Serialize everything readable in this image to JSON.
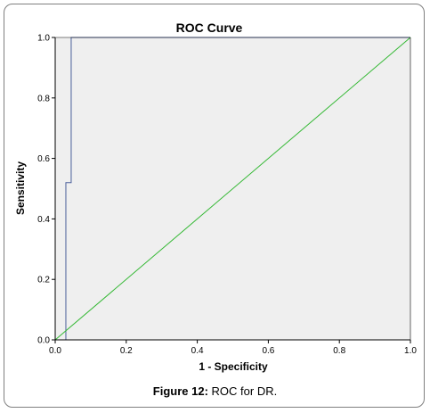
{
  "chart_data": {
    "type": "line",
    "title": "ROC Curve",
    "xlabel": "1 - Specificity",
    "ylabel": "Sensitivity",
    "xlim": [
      0.0,
      1.0
    ],
    "ylim": [
      0.0,
      1.0
    ],
    "x_ticks": [
      "0.0",
      "0.2",
      "0.4",
      "0.6",
      "0.8",
      "1.0"
    ],
    "y_ticks": [
      "0.0",
      "0.2",
      "0.4",
      "0.6",
      "0.8",
      "1.0"
    ],
    "grid": false,
    "series": [
      {
        "color": "#4a5f9a",
        "x": [
          0.0,
          0.03,
          0.03,
          0.045,
          0.045,
          1.0
        ],
        "y": [
          0.0,
          0.0,
          0.52,
          0.52,
          1.0,
          1.0
        ]
      },
      {
        "color": "#33b833",
        "x": [
          0.0,
          1.0
        ],
        "y": [
          0.0,
          1.0
        ]
      }
    ]
  },
  "caption": {
    "label": "Figure 12:",
    "text": "ROC for DR."
  },
  "colors": {
    "plot_background": "#efefef",
    "frame_border": "#7f7f7f"
  }
}
